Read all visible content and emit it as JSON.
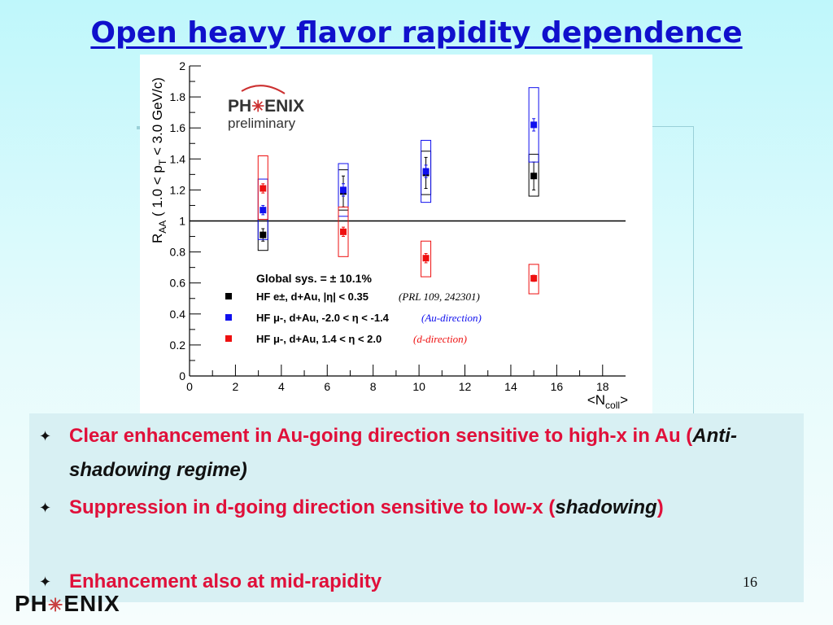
{
  "slide": {
    "title": "Open heavy flavor rapidity dependence",
    "page_number": "16",
    "footer_logo": {
      "left": "PH",
      "right": "ENIX",
      "mark": "✳"
    }
  },
  "chart_logo": {
    "left": "PH",
    "right": "ENIX",
    "mark": "✳",
    "subtitle": "preliminary"
  },
  "notes": [
    {
      "bullet": "✦",
      "text": " Clear enhancement in Au-going direction sensitive to high-x in Au   (",
      "emph": "Anti-shadowing regime)",
      "tail": ""
    },
    {
      "bullet": "✦",
      "text": "Suppression in d-going direction sensitive to low-x (",
      "emph": "shadowing",
      "tail": ")"
    },
    {
      "bullet": "✦",
      "text": "Enhancement also at mid-rapidity",
      "emph": "",
      "tail": ""
    }
  ],
  "chart_data": {
    "type": "scatter",
    "xlabel": "<N",
    "xlabel_sub": "coll",
    "xlabel_end": ">",
    "ylabel": "R",
    "ylabel_sub": "AA",
    "ylabel_rest": " ( 1.0 < p",
    "ylabel_sub2": "T",
    "ylabel_rest2": " < 3.0 GeV/c)",
    "xlim": [
      0,
      19
    ],
    "ylim": [
      0,
      2
    ],
    "xticks": [
      0,
      2,
      4,
      6,
      8,
      10,
      12,
      14,
      16,
      18
    ],
    "yticks": [
      0,
      0.2,
      0.4,
      0.6,
      0.8,
      1,
      1.2,
      1.4,
      1.6,
      1.8,
      2
    ],
    "ytick_labels": [
      "0",
      "0.2",
      "0.4",
      "0.6",
      "0.8",
      "1",
      "1.2",
      "1.4",
      "1.6",
      "1.8",
      "2"
    ],
    "reference_line_y": 1,
    "global_sys": "Global sys. = ± 10.1%",
    "legend_position": "bottom-left",
    "series": [
      {
        "name": "HF e±, d+Au, |η| < 0.35",
        "note": "(PRL 109, 242301)",
        "color": "#000000",
        "points": [
          {
            "x": 3.2,
            "y": 0.91,
            "err": 0.04,
            "sys": [
              0.81,
              1.01
            ]
          },
          {
            "x": 6.7,
            "y": 1.19,
            "err": 0.1,
            "sys": [
              1.07,
              1.33
            ]
          },
          {
            "x": 10.3,
            "y": 1.31,
            "err": 0.1,
            "sys": [
              1.17,
              1.45
            ]
          },
          {
            "x": 15.0,
            "y": 1.29,
            "err": 0.09,
            "sys": [
              1.16,
              1.43
            ]
          }
        ]
      },
      {
        "name": "HF μ-, d+Au, -2.0 < η < -1.4",
        "note": "(Au-direction)",
        "color": "#1010ee",
        "points": [
          {
            "x": 3.2,
            "y": 1.07,
            "err": 0.03,
            "sys": [
              0.88,
              1.27
            ]
          },
          {
            "x": 6.7,
            "y": 1.2,
            "err": 0.04,
            "sys": [
              1.03,
              1.37
            ]
          },
          {
            "x": 10.3,
            "y": 1.32,
            "err": 0.04,
            "sys": [
              1.12,
              1.52
            ]
          },
          {
            "x": 15.0,
            "y": 1.62,
            "err": 0.04,
            "sys": [
              1.38,
              1.86
            ]
          }
        ]
      },
      {
        "name": "HF μ-, d+Au, 1.4 < η < 2.0",
        "note": "(d-direction)",
        "color": "#ee1010",
        "points": [
          {
            "x": 3.2,
            "y": 1.21,
            "err": 0.03,
            "sys": [
              1.01,
              1.42
            ]
          },
          {
            "x": 6.7,
            "y": 0.93,
            "err": 0.03,
            "sys": [
              0.77,
              1.09
            ]
          },
          {
            "x": 10.3,
            "y": 0.76,
            "err": 0.03,
            "sys": [
              0.64,
              0.87
            ]
          },
          {
            "x": 15.0,
            "y": 0.63,
            "err": 0.02,
            "sys": [
              0.53,
              0.72
            ]
          }
        ]
      }
    ]
  }
}
